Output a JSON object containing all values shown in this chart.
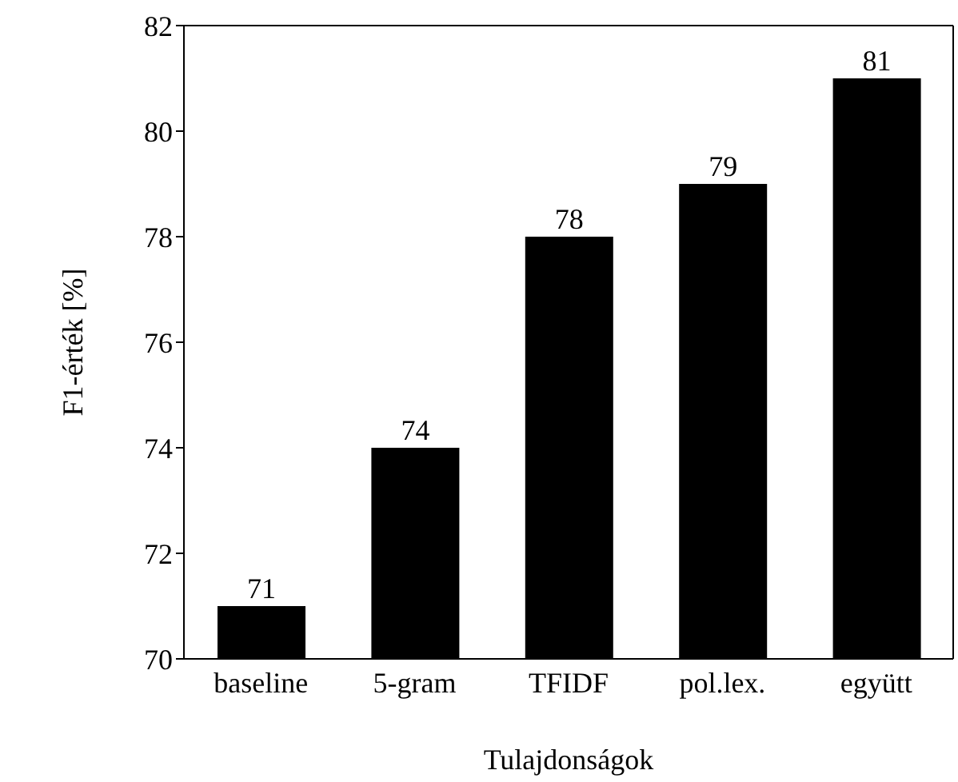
{
  "chart_data": {
    "type": "bar",
    "xlabel": "Tulajdonságok",
    "ylabel": "F1-érték [%]",
    "categories": [
      "baseline",
      "5-gram",
      "TFIDF",
      "pol.lex.",
      "együtt"
    ],
    "values": [
      71,
      74,
      78,
      79,
      81
    ],
    "color": "#000000",
    "ylim": [
      70,
      82
    ],
    "yticks": [
      70,
      72,
      74,
      76,
      78,
      80,
      82
    ],
    "data_labels": true
  }
}
